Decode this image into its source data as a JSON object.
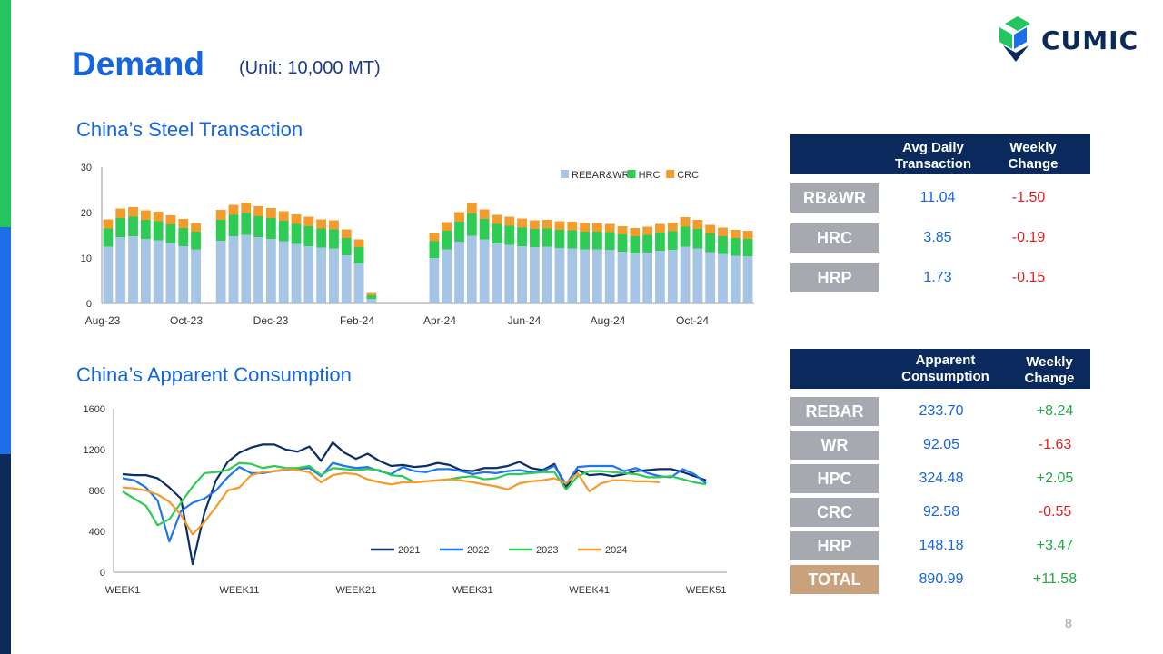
{
  "header": {
    "title": "Demand",
    "unit": "(Unit: 10,000 MT)",
    "logo_text": "CUMIC",
    "page_number": "8"
  },
  "colors": {
    "accent_blue": "#1565e0",
    "navy": "#0a2a5e",
    "rebar": "#a6c5e4",
    "hrc": "#2ecc55",
    "crc": "#f39b2b",
    "s2021": "#0b2f66",
    "s2022": "#1f77f0",
    "s2023": "#2ecc55",
    "s2024": "#f39b2b"
  },
  "sections": {
    "transaction_title": "China’s Steel Transaction",
    "consumption_title": "China’s Apparent Consumption"
  },
  "chart_data": [
    {
      "type": "bar",
      "stacked": true,
      "x_labels": [
        "Aug-23",
        "Oct-23",
        "Dec-23",
        "Feb-24",
        "Apr-24",
        "Jun-24",
        "Aug-24",
        "Oct-24"
      ],
      "ylim": [
        0,
        30
      ],
      "yticks": [
        0,
        10,
        20,
        30
      ],
      "legend": "top-right",
      "series": [
        {
          "name": "REBAR&WR",
          "weekly_values": [
            12.5,
            14.6,
            14.8,
            14.2,
            13.9,
            13.3,
            12.6,
            11.9,
            0,
            13.8,
            14.8,
            15.1,
            14.6,
            14.2,
            13.7,
            13.1,
            12.6,
            12.3,
            12.1,
            10.6,
            8.8,
            1.0,
            0,
            0,
            0,
            0,
            10.0,
            11.9,
            13.6,
            14.9,
            14.1,
            13.2,
            12.9,
            12.6,
            12.4,
            12.5,
            12.2,
            12.1,
            11.9,
            11.9,
            11.8,
            11.4,
            11.0,
            11.2,
            11.6,
            11.8,
            12.5,
            12.1,
            11.3,
            10.9,
            10.5,
            10.4
          ]
        },
        {
          "name": "HRC",
          "weekly_values": [
            4.0,
            4.2,
            4.3,
            4.2,
            4.2,
            4.1,
            4.0,
            3.9,
            0,
            4.6,
            4.7,
            4.8,
            4.6,
            4.6,
            4.5,
            4.4,
            4.4,
            4.2,
            4.2,
            3.8,
            3.6,
            0.8,
            0,
            0,
            0,
            0,
            3.7,
            4.1,
            4.4,
            4.9,
            4.5,
            4.3,
            4.2,
            4.1,
            4.0,
            4.0,
            4.0,
            4.0,
            3.9,
            3.9,
            3.9,
            3.8,
            3.8,
            3.9,
            4.0,
            4.1,
            4.4,
            4.3,
            4.1,
            3.9,
            3.9,
            3.8
          ]
        },
        {
          "name": "CRC",
          "weekly_values": [
            2.0,
            2.1,
            2.1,
            2.1,
            2.1,
            2.0,
            2.0,
            1.9,
            0,
            2.2,
            2.2,
            2.3,
            2.2,
            2.2,
            2.1,
            2.1,
            2.1,
            2.0,
            2.0,
            1.9,
            1.7,
            0.5,
            0,
            0,
            0,
            0,
            1.8,
            1.9,
            2.1,
            2.3,
            2.1,
            2.0,
            2.0,
            2.0,
            1.9,
            1.9,
            1.9,
            1.9,
            1.9,
            1.9,
            1.8,
            1.8,
            1.8,
            1.8,
            1.9,
            1.9,
            2.1,
            2.0,
            1.9,
            1.9,
            1.8,
            1.8
          ]
        }
      ]
    },
    {
      "type": "line",
      "x_labels": [
        "WEEK1",
        "WEEK11",
        "WEEK21",
        "WEEK31",
        "WEEK41",
        "WEEK51"
      ],
      "ylim": [
        0,
        1600
      ],
      "yticks": [
        0,
        400,
        800,
        1200,
        1600
      ],
      "legend": "bottom-center",
      "series": [
        {
          "name": "2021",
          "values": [
            960,
            950,
            950,
            920,
            830,
            720,
            80,
            580,
            900,
            1080,
            1170,
            1220,
            1250,
            1250,
            1200,
            1180,
            1230,
            1090,
            1270,
            1170,
            1110,
            1160,
            1090,
            1040,
            1050,
            1030,
            1040,
            1070,
            1050,
            1000,
            990,
            1020,
            1020,
            1040,
            1080,
            1020,
            1000,
            1060,
            830,
            1000,
            950,
            960,
            940,
            960,
            990,
            1000,
            1010,
            1010,
            980,
            940,
            900
          ]
        },
        {
          "name": "2022",
          "values": [
            920,
            900,
            830,
            700,
            300,
            600,
            680,
            720,
            800,
            930,
            1030,
            970,
            970,
            990,
            1000,
            1010,
            1020,
            940,
            1070,
            1040,
            1020,
            1030,
            990,
            960,
            1030,
            990,
            980,
            1010,
            1010,
            990,
            960,
            980,
            970,
            990,
            1000,
            980,
            990,
            1040,
            860,
            1030,
            1040,
            1040,
            1040,
            990,
            1020,
            970,
            940,
            930,
            1010,
            960,
            870
          ]
        },
        {
          "name": "2023",
          "values": [
            790,
            720,
            650,
            460,
            520,
            680,
            840,
            970,
            980,
            1000,
            1070,
            1060,
            1020,
            1040,
            1020,
            1020,
            1040,
            950,
            1020,
            1010,
            1000,
            1010,
            1000,
            950,
            940,
            880,
            890,
            900,
            910,
            930,
            940,
            910,
            920,
            960,
            960,
            970,
            980,
            980,
            810,
            940,
            990,
            990,
            980,
            970,
            960,
            930,
            930,
            940,
            910,
            880,
            860
          ]
        },
        {
          "name": "2024",
          "values": [
            830,
            820,
            800,
            760,
            690,
            560,
            370,
            490,
            640,
            800,
            830,
            950,
            980,
            990,
            1010,
            1000,
            980,
            880,
            950,
            970,
            960,
            910,
            880,
            860,
            880,
            880,
            890,
            900,
            910,
            900,
            880,
            860,
            840,
            810,
            870,
            890,
            900,
            920,
            870,
            970,
            790,
            870,
            900,
            900,
            890,
            890,
            880
          ]
        }
      ]
    }
  ],
  "transaction_table": {
    "headers": [
      "Avg Daily Transaction",
      "Weekly Change"
    ],
    "rows": [
      {
        "label": "RB&WR",
        "value": "11.04",
        "change": "-1.50"
      },
      {
        "label": "HRC",
        "value": "3.85",
        "change": "-0.19"
      },
      {
        "label": "HRP",
        "value": "1.73",
        "change": "-0.15"
      }
    ]
  },
  "consumption_table": {
    "headers": [
      "Apparent Consumption",
      "Weekly Change"
    ],
    "rows": [
      {
        "label": "REBAR",
        "value": "233.70",
        "change": "+8.24"
      },
      {
        "label": "WR",
        "value": "92.05",
        "change": "-1.63"
      },
      {
        "label": "HPC",
        "value": "324.48",
        "change": "+2.05"
      },
      {
        "label": "CRC",
        "value": "92.58",
        "change": "-0.55"
      },
      {
        "label": "HRP",
        "value": "148.18",
        "change": "+3.47"
      },
      {
        "label": "TOTAL",
        "value": "890.99",
        "change": "+11.58"
      }
    ]
  }
}
